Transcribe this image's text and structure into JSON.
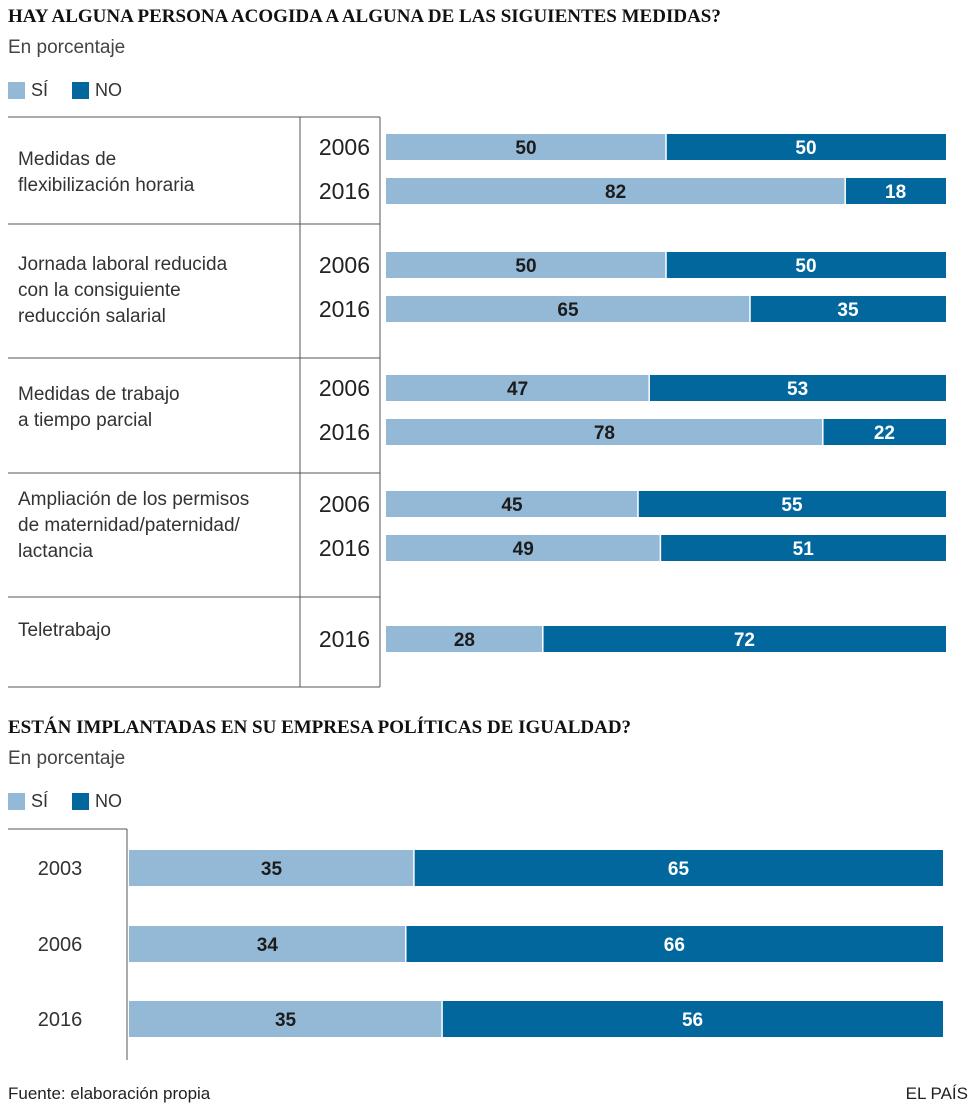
{
  "colors": {
    "yes": "#94b9d6",
    "no": "#02679d",
    "rule": "#555555"
  },
  "legend": {
    "yes_label": "SÍ",
    "no_label": "NO"
  },
  "footer": {
    "source": "Fuente: elaboración propia",
    "brand": "EL PAÍS"
  },
  "chart_data": [
    {
      "type": "bar",
      "orientation": "horizontal-stacked",
      "title": "HAY ALGUNA PERSONA ACOGIDA A ALGUNA DE LAS SIGUIENTES MEDIDAS?",
      "subtitle": "En porcentaje",
      "series_names": [
        "SÍ",
        "NO"
      ],
      "groups": [
        {
          "category": [
            "Medidas de",
            "flexibilización horaria"
          ],
          "rows": [
            {
              "year": "2006",
              "yes": 50,
              "no": 50
            },
            {
              "year": "2016",
              "yes": 82,
              "no": 18
            }
          ]
        },
        {
          "category": [
            "Jornada laboral reducida",
            "con la consiguiente",
            "reducción salarial"
          ],
          "rows": [
            {
              "year": "2006",
              "yes": 50,
              "no": 50
            },
            {
              "year": "2016",
              "yes": 65,
              "no": 35
            }
          ]
        },
        {
          "category": [
            "Medidas de trabajo",
            "a tiempo parcial"
          ],
          "rows": [
            {
              "year": "2006",
              "yes": 47,
              "no": 53
            },
            {
              "year": "2016",
              "yes": 78,
              "no": 22
            }
          ]
        },
        {
          "category": [
            "Ampliación de los permisos",
            "de maternidad/paternidad/",
            "lactancia"
          ],
          "rows": [
            {
              "year": "2006",
              "yes": 45,
              "no": 55
            },
            {
              "year": "2016",
              "yes": 49,
              "no": 51
            }
          ]
        },
        {
          "category": [
            "Teletrabajo"
          ],
          "rows": [
            {
              "year": "2016",
              "yes": 28,
              "no": 72
            }
          ]
        }
      ]
    },
    {
      "type": "bar",
      "orientation": "horizontal-stacked",
      "title": "ESTÁN IMPLANTADAS EN SU EMPRESA POLÍTICAS DE IGUALDAD?",
      "subtitle": "En porcentaje",
      "series_names": [
        "SÍ",
        "NO"
      ],
      "rows": [
        {
          "year": "2003",
          "yes": 35,
          "no": 65
        },
        {
          "year": "2006",
          "yes": 34,
          "no": 66
        },
        {
          "year": "2016",
          "yes": 35,
          "no": 56
        }
      ]
    }
  ]
}
